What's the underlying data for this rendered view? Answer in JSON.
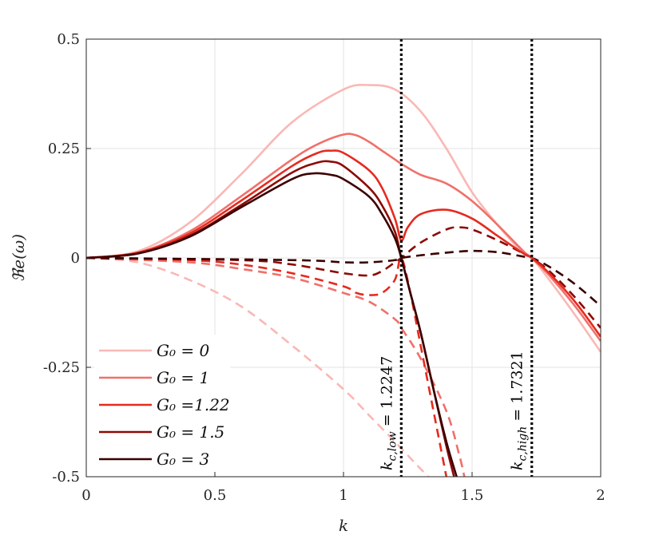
{
  "chart_data": {
    "type": "line",
    "title": "",
    "xlabel": "k",
    "ylabel": "ℜe(ω)",
    "xlim": [
      0,
      2
    ],
    "ylim": [
      -0.5,
      0.5
    ],
    "xticks": [
      "0",
      "0.5",
      "1",
      "1.5",
      "2"
    ],
    "yticks": [
      "0.5",
      "0.25",
      "0",
      "-0.25",
      "-0.5"
    ],
    "grid": true,
    "legend_position": "bottom-left",
    "series": [
      {
        "name": "G0 = 0",
        "legend": "G₀ = 0",
        "color": "#F9B8B5",
        "solid": [
          [
            0,
            0
          ],
          [
            0.2,
            0.015
          ],
          [
            0.4,
            0.08
          ],
          [
            0.6,
            0.19
          ],
          [
            0.8,
            0.31
          ],
          [
            1.0,
            0.385
          ],
          [
            1.1,
            0.395
          ],
          [
            1.2,
            0.385
          ],
          [
            1.3,
            0.335
          ],
          [
            1.4,
            0.25
          ],
          [
            1.5,
            0.15
          ],
          [
            1.6,
            0.075
          ],
          [
            1.7,
            0.01
          ],
          [
            1.732,
            0
          ],
          [
            1.8,
            -0.05
          ],
          [
            1.9,
            -0.13
          ],
          [
            2.0,
            -0.215
          ]
        ],
        "dashed": [
          [
            0,
            0
          ],
          [
            0.2,
            -0.01
          ],
          [
            0.4,
            -0.05
          ],
          [
            0.6,
            -0.11
          ],
          [
            0.8,
            -0.2
          ],
          [
            1.0,
            -0.3
          ],
          [
            1.1,
            -0.36
          ],
          [
            1.2,
            -0.42
          ],
          [
            1.28,
            -0.47
          ],
          [
            1.33,
            -0.5
          ]
        ]
      },
      {
        "name": "G0 = 1",
        "legend": "G₀ = 1",
        "color": "#F0706A",
        "solid": [
          [
            0,
            0
          ],
          [
            0.2,
            0.012
          ],
          [
            0.4,
            0.06
          ],
          [
            0.6,
            0.14
          ],
          [
            0.8,
            0.225
          ],
          [
            0.9,
            0.26
          ],
          [
            1.0,
            0.282
          ],
          [
            1.05,
            0.28
          ],
          [
            1.1,
            0.265
          ],
          [
            1.15,
            0.245
          ],
          [
            1.2,
            0.225
          ],
          [
            1.225,
            0.215
          ],
          [
            1.3,
            0.19
          ],
          [
            1.4,
            0.17
          ],
          [
            1.5,
            0.13
          ],
          [
            1.6,
            0.075
          ],
          [
            1.7,
            0.015
          ],
          [
            1.732,
            0
          ],
          [
            1.8,
            -0.04
          ],
          [
            1.9,
            -0.11
          ],
          [
            2.0,
            -0.19
          ]
        ],
        "dashed": [
          [
            0,
            0
          ],
          [
            0.4,
            -0.01
          ],
          [
            0.6,
            -0.025
          ],
          [
            0.8,
            -0.045
          ],
          [
            1.0,
            -0.08
          ],
          [
            1.1,
            -0.1
          ],
          [
            1.2,
            -0.14
          ],
          [
            1.2247,
            -0.16
          ],
          [
            1.3,
            -0.23
          ],
          [
            1.4,
            -0.35
          ],
          [
            1.45,
            -0.45
          ],
          [
            1.47,
            -0.5
          ]
        ]
      },
      {
        "name": "G0 = 1.22",
        "legend": "G₀ =1.22",
        "color": "#E62A1E",
        "solid": [
          [
            0,
            0
          ],
          [
            0.2,
            0.012
          ],
          [
            0.4,
            0.055
          ],
          [
            0.6,
            0.13
          ],
          [
            0.8,
            0.21
          ],
          [
            0.9,
            0.24
          ],
          [
            0.95,
            0.245
          ],
          [
            1.0,
            0.24
          ],
          [
            1.1,
            0.2
          ],
          [
            1.15,
            0.16
          ],
          [
            1.2,
            0.09
          ],
          [
            1.2247,
            0.04
          ],
          [
            1.25,
            0.07
          ],
          [
            1.3,
            0.1
          ],
          [
            1.4,
            0.11
          ],
          [
            1.5,
            0.09
          ],
          [
            1.6,
            0.05
          ],
          [
            1.7,
            0.01
          ],
          [
            1.732,
            0
          ],
          [
            1.8,
            -0.035
          ],
          [
            1.9,
            -0.1
          ],
          [
            2.0,
            -0.18
          ]
        ],
        "dashed": [
          [
            0,
            0
          ],
          [
            0.4,
            -0.005
          ],
          [
            0.6,
            -0.015
          ],
          [
            0.8,
            -0.035
          ],
          [
            1.0,
            -0.065
          ],
          [
            1.05,
            -0.08
          ],
          [
            1.1,
            -0.085
          ],
          [
            1.15,
            -0.08
          ],
          [
            1.2,
            -0.05
          ],
          [
            1.2247,
            0
          ],
          [
            1.26,
            -0.08
          ],
          [
            1.3,
            -0.2
          ],
          [
            1.36,
            -0.38
          ],
          [
            1.4,
            -0.5
          ]
        ]
      },
      {
        "name": "G0 = 1.5",
        "legend": "G₀ = 1.5",
        "color": "#8C0A05",
        "solid": [
          [
            0,
            0
          ],
          [
            0.2,
            0.01
          ],
          [
            0.4,
            0.05
          ],
          [
            0.6,
            0.12
          ],
          [
            0.8,
            0.195
          ],
          [
            0.9,
            0.218
          ],
          [
            0.95,
            0.22
          ],
          [
            1.0,
            0.21
          ],
          [
            1.1,
            0.16
          ],
          [
            1.15,
            0.12
          ],
          [
            1.2,
            0.06
          ],
          [
            1.2247,
            0
          ],
          [
            1.26,
            -0.08
          ],
          [
            1.3,
            -0.17
          ],
          [
            1.35,
            -0.3
          ],
          [
            1.4,
            -0.43
          ],
          [
            1.43,
            -0.5
          ]
        ],
        "dashed": [
          [
            0,
            0
          ],
          [
            0.6,
            -0.005
          ],
          [
            0.8,
            -0.015
          ],
          [
            1.0,
            -0.035
          ],
          [
            1.1,
            -0.04
          ],
          [
            1.15,
            -0.03
          ],
          [
            1.2,
            -0.01
          ],
          [
            1.2247,
            0
          ],
          [
            1.3,
            0.035
          ],
          [
            1.4,
            0.065
          ],
          [
            1.45,
            0.07
          ],
          [
            1.5,
            0.065
          ],
          [
            1.6,
            0.04
          ],
          [
            1.7,
            0.01
          ],
          [
            1.732,
            0
          ],
          [
            1.8,
            -0.03
          ],
          [
            1.9,
            -0.09
          ],
          [
            2.0,
            -0.16
          ]
        ]
      },
      {
        "name": "G0 = 3",
        "legend": "G₀ = 3",
        "color": "#3A0000",
        "solid": [
          [
            0,
            0
          ],
          [
            0.2,
            0.01
          ],
          [
            0.4,
            0.048
          ],
          [
            0.6,
            0.115
          ],
          [
            0.8,
            0.18
          ],
          [
            0.88,
            0.193
          ],
          [
            0.95,
            0.19
          ],
          [
            1.0,
            0.18
          ],
          [
            1.1,
            0.14
          ],
          [
            1.15,
            0.1
          ],
          [
            1.2,
            0.045
          ],
          [
            1.2247,
            0
          ],
          [
            1.26,
            -0.08
          ],
          [
            1.3,
            -0.17
          ],
          [
            1.35,
            -0.3
          ],
          [
            1.4,
            -0.42
          ],
          [
            1.44,
            -0.5
          ]
        ],
        "dashed": [
          [
            0,
            0
          ],
          [
            0.8,
            -0.005
          ],
          [
            1.0,
            -0.01
          ],
          [
            1.1,
            -0.01
          ],
          [
            1.2,
            -0.005
          ],
          [
            1.2247,
            0
          ],
          [
            1.3,
            0.006
          ],
          [
            1.4,
            0.012
          ],
          [
            1.5,
            0.016
          ],
          [
            1.6,
            0.013
          ],
          [
            1.7,
            0.003
          ],
          [
            1.732,
            0
          ],
          [
            1.8,
            -0.02
          ],
          [
            1.9,
            -0.06
          ],
          [
            2.0,
            -0.11
          ]
        ]
      }
    ],
    "vlines": [
      {
        "x": 1.2247,
        "label": "k_{c,low} = 1.2247",
        "label_main": "k",
        "label_sub": "c,low",
        "label_rest": " = 1.2247"
      },
      {
        "x": 1.7321,
        "label": "k_{c,high} = 1.7321",
        "label_main": "k",
        "label_sub": "c,high",
        "label_rest": " = 1.7321"
      }
    ]
  }
}
